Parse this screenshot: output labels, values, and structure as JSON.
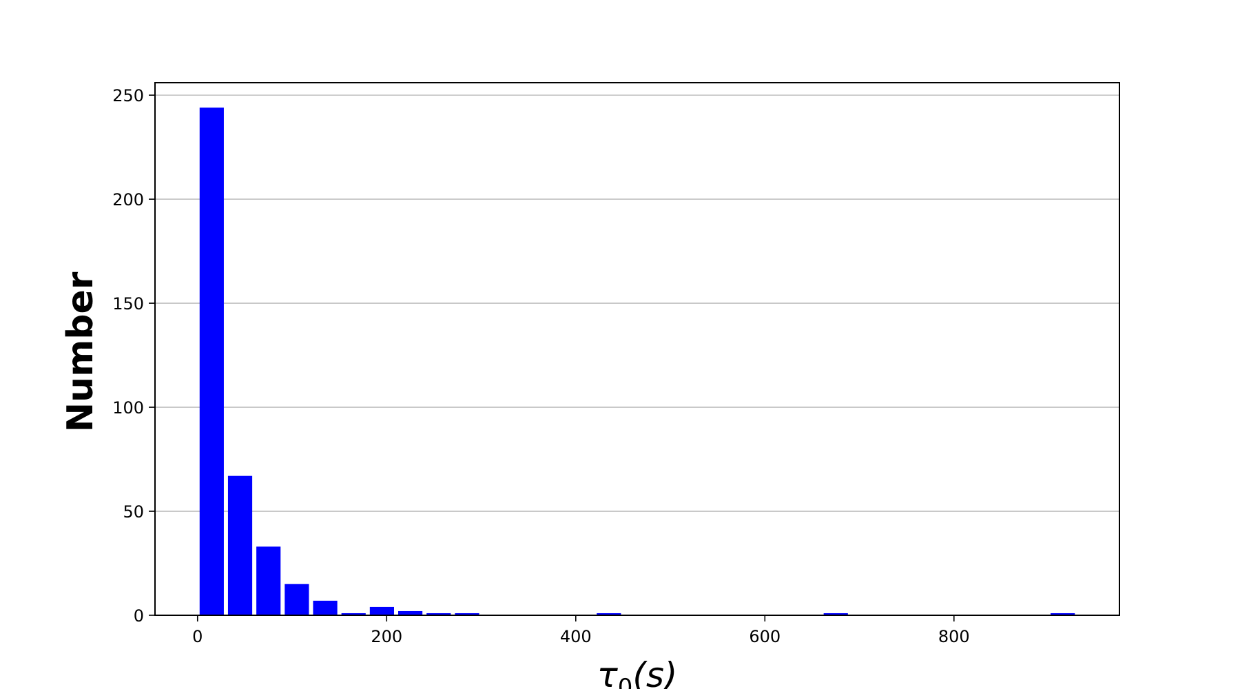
{
  "chart_data": {
    "type": "bar",
    "bin_width": 30,
    "bars": [
      {
        "x": 15,
        "value": 244
      },
      {
        "x": 45,
        "value": 67
      },
      {
        "x": 75,
        "value": 33
      },
      {
        "x": 105,
        "value": 15
      },
      {
        "x": 135,
        "value": 7
      },
      {
        "x": 165,
        "value": 1
      },
      {
        "x": 195,
        "value": 4
      },
      {
        "x": 225,
        "value": 2
      },
      {
        "x": 255,
        "value": 1
      },
      {
        "x": 285,
        "value": 1
      },
      {
        "x": 435,
        "value": 1
      },
      {
        "x": 675,
        "value": 1
      },
      {
        "x": 915,
        "value": 1
      }
    ],
    "xlim": [
      -45,
      975
    ],
    "ylim": [
      0,
      256
    ],
    "x_ticks": [
      0,
      200,
      400,
      600,
      800
    ],
    "y_ticks": [
      0,
      50,
      100,
      150,
      200,
      250
    ],
    "ylabel": "Number",
    "xlabel": {
      "base": "τ",
      "subscript": "0",
      "unit": "(s)"
    },
    "grid": {
      "y": true,
      "x": false
    },
    "bar_color": "#0000ff",
    "grid_color": "#c0c0c0"
  }
}
